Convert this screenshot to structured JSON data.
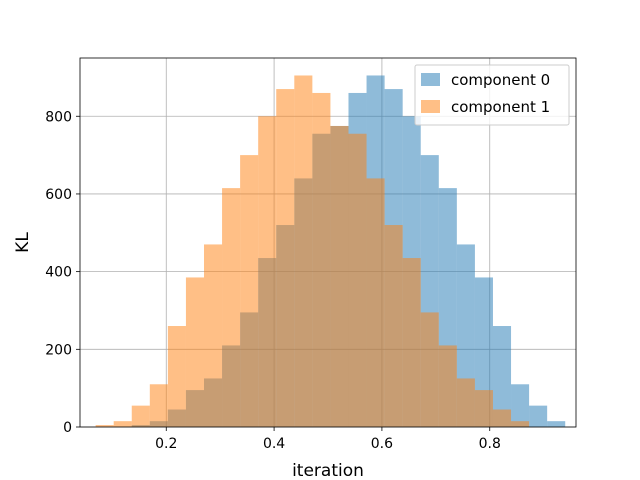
{
  "chart_data": {
    "type": "histogram",
    "xlabel": "iteration",
    "ylabel": "KL",
    "xlim": [
      0.04,
      0.96
    ],
    "ylim": [
      0,
      950
    ],
    "xticks": [
      0.2,
      0.4,
      0.6,
      0.8
    ],
    "xtick_labels": [
      "0.2",
      "0.4",
      "0.6",
      "0.8"
    ],
    "yticks": [
      0,
      200,
      400,
      600,
      800
    ],
    "ytick_labels": [
      "0",
      "200",
      "400",
      "600",
      "800"
    ],
    "grid": true,
    "legend_position": "top-right",
    "series": [
      {
        "name": "component 0",
        "color": "#1f77b4",
        "alpha": 0.5,
        "bin_width": 0.0335,
        "bin_starts": [
          0.136,
          0.1695,
          0.203,
          0.2365,
          0.27,
          0.3035,
          0.337,
          0.3705,
          0.404,
          0.4375,
          0.471,
          0.5045,
          0.538,
          0.5715,
          0.605,
          0.6385,
          0.672,
          0.7055,
          0.739,
          0.7725,
          0.806,
          0.8395,
          0.873,
          0.9065
        ],
        "counts": [
          5,
          15,
          45,
          95,
          125,
          210,
          295,
          435,
          520,
          640,
          755,
          775,
          860,
          905,
          870,
          800,
          700,
          615,
          470,
          385,
          260,
          110,
          55,
          15
        ]
      },
      {
        "name": "component 1",
        "color": "#ff7f0e",
        "alpha": 0.5,
        "bin_width": 0.0335,
        "bin_starts": [
          0.069,
          0.1025,
          0.136,
          0.1695,
          0.203,
          0.2365,
          0.27,
          0.3035,
          0.337,
          0.3705,
          0.404,
          0.4375,
          0.471,
          0.5045,
          0.538,
          0.5715,
          0.605,
          0.6385,
          0.672,
          0.7055,
          0.739,
          0.7725,
          0.806,
          0.8395
        ],
        "counts": [
          5,
          15,
          55,
          110,
          260,
          385,
          470,
          615,
          700,
          800,
          870,
          905,
          860,
          775,
          755,
          640,
          520,
          435,
          295,
          210,
          125,
          95,
          45,
          15
        ]
      }
    ]
  }
}
